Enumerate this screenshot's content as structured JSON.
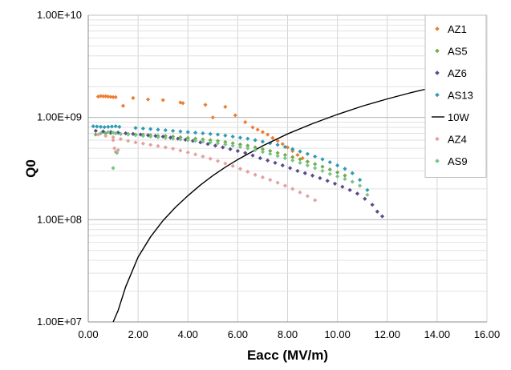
{
  "chart_data": {
    "type": "scatter",
    "title": "",
    "xlabel": "Eacc (MV/m)",
    "ylabel": "Q0",
    "xlim": [
      0,
      16
    ],
    "ylim": [
      10000000,
      10000000000
    ],
    "y_scale": "log",
    "grid": true,
    "legend_placement": "right",
    "x_tick_labels": [
      "0.00",
      "2.00",
      "4.00",
      "6.00",
      "8.00",
      "10.00",
      "12.00",
      "14.00",
      "16.00"
    ],
    "y_tick_labels": [
      "1.00E+07",
      "1.00E+08",
      "1.00E+09",
      "1.00E+10"
    ],
    "series": [
      {
        "name": "AZ1",
        "marker": "diamond",
        "color": "#ED7D31",
        "x": [
          0.4,
          0.5,
          0.6,
          0.7,
          0.8,
          0.9,
          1.0,
          1.1,
          1.4,
          1.8,
          2.4,
          3.0,
          3.7,
          3.8,
          4.7,
          5.0,
          5.5,
          5.9,
          6.3,
          6.6,
          6.8,
          7.0,
          7.2,
          7.4,
          7.6,
          7.8,
          8.0,
          8.2,
          8.4,
          8.6,
          8.8
        ],
        "y": [
          1600000000,
          1620000000,
          1610000000,
          1610000000,
          1600000000,
          1590000000,
          1580000000,
          1580000000,
          1300000000,
          1550000000,
          1500000000,
          1480000000,
          1400000000,
          1380000000,
          1330000000,
          1000000000,
          1270000000,
          1050000000,
          900000000,
          800000000,
          760000000,
          720000000,
          680000000,
          630000000,
          590000000,
          550000000,
          510000000,
          470000000,
          430000000,
          400000000,
          370000000
        ]
      },
      {
        "name": "AS5",
        "marker": "diamond",
        "color": "#70AD47",
        "x": [
          0.3,
          0.5,
          0.7,
          0.9,
          1.1,
          1.3,
          1.6,
          1.9,
          2.2,
          2.5,
          2.8,
          3.1,
          3.4,
          3.7,
          4.0,
          4.3,
          4.6,
          4.9,
          5.2,
          5.5,
          5.8,
          6.1,
          6.4,
          6.7,
          7.0,
          7.3,
          7.6,
          7.9,
          8.2,
          8.5,
          8.8,
          9.1,
          9.4,
          9.7,
          10.0,
          10.3
        ],
        "y": [
          680000000,
          700000000,
          700000000,
          700000000,
          700000000,
          690000000,
          690000000,
          680000000,
          680000000,
          670000000,
          660000000,
          660000000,
          650000000,
          640000000,
          630000000,
          620000000,
          610000000,
          600000000,
          590000000,
          575000000,
          560000000,
          545000000,
          530000000,
          510000000,
          490000000,
          470000000,
          450000000,
          430000000,
          410000000,
          390000000,
          370000000,
          350000000,
          330000000,
          310000000,
          290000000,
          270000000
        ]
      },
      {
        "name": "AZ6",
        "marker": "diamond",
        "color": "#5B4A8B",
        "x": [
          0.3,
          0.6,
          0.9,
          1.2,
          1.5,
          1.8,
          2.1,
          2.4,
          2.7,
          3.0,
          3.3,
          3.6,
          3.9,
          4.2,
          4.5,
          4.8,
          5.1,
          5.4,
          5.7,
          6.0,
          6.3,
          6.6,
          6.9,
          7.2,
          7.5,
          7.8,
          8.1,
          8.4,
          8.7,
          9.0,
          9.3,
          9.6,
          9.9,
          10.2,
          10.5,
          10.8,
          11.1,
          11.4,
          11.6,
          11.8
        ],
        "y": [
          740000000,
          730000000,
          720000000,
          710000000,
          700000000,
          690000000,
          680000000,
          670000000,
          660000000,
          650000000,
          635000000,
          620000000,
          605000000,
          590000000,
          570000000,
          550000000,
          530000000,
          510000000,
          490000000,
          470000000,
          450000000,
          425000000,
          400000000,
          380000000,
          360000000,
          340000000,
          320000000,
          300000000,
          285000000,
          270000000,
          255000000,
          240000000,
          225000000,
          210000000,
          195000000,
          180000000,
          160000000,
          140000000,
          120000000,
          108000000
        ]
      },
      {
        "name": "AS13",
        "marker": "diamond",
        "color": "#2E9CB4",
        "x": [
          0.2,
          0.35,
          0.5,
          0.65,
          0.8,
          0.95,
          1.1,
          1.25,
          1.9,
          2.2,
          2.5,
          2.8,
          3.1,
          3.4,
          3.7,
          4.0,
          4.3,
          4.6,
          4.9,
          5.2,
          5.5,
          5.8,
          6.1,
          6.4,
          6.7,
          7.0,
          7.3,
          7.6,
          7.9,
          8.2,
          8.5,
          8.8,
          9.1,
          9.4,
          9.7,
          10.0,
          10.3,
          10.6,
          10.9,
          11.2
        ],
        "y": [
          820000000,
          815000000,
          810000000,
          805000000,
          810000000,
          815000000,
          820000000,
          810000000,
          790000000,
          780000000,
          770000000,
          760000000,
          750000000,
          740000000,
          730000000,
          720000000,
          710000000,
          700000000,
          690000000,
          680000000,
          665000000,
          650000000,
          635000000,
          620000000,
          600000000,
          580000000,
          560000000,
          540000000,
          515000000,
          490000000,
          465000000,
          440000000,
          415000000,
          390000000,
          365000000,
          340000000,
          315000000,
          285000000,
          245000000,
          195000000
        ]
      },
      {
        "name": "10W",
        "marker": "line",
        "color": "#000000",
        "x": [
          1.0,
          1.2,
          1.5,
          2.0,
          2.5,
          3.0,
          3.5,
          4.0,
          4.5,
          5.0,
          5.5,
          6.0,
          7.0,
          8.0,
          9.0,
          10.0,
          11.0,
          12.0,
          13.0,
          14.0,
          15.0,
          15.6
        ],
        "y": [
          10000000,
          13000000,
          22000000,
          43000000,
          68000000,
          98000000,
          132000000,
          172000000,
          218000000,
          270000000,
          326000000,
          388000000,
          528000000,
          690000000,
          870000000,
          1070000000,
          1290000000,
          1520000000,
          1760000000,
          2010000000,
          2250000000,
          2350000000
        ]
      },
      {
        "name": "AZ4",
        "marker": "diamond",
        "color": "#E6A0A0",
        "x": [
          0.4,
          0.7,
          1.0,
          1.3,
          1.6,
          1.9,
          2.2,
          2.5,
          2.8,
          3.1,
          3.4,
          3.7,
          4.0,
          4.3,
          4.6,
          4.9,
          5.2,
          5.5,
          5.8,
          6.1,
          6.4,
          6.7,
          7.0,
          7.3,
          7.6,
          7.9,
          8.2,
          8.5,
          8.8,
          9.1,
          1.1,
          1.2,
          1.0,
          1.05
        ],
        "y": [
          680000000,
          660000000,
          640000000,
          615000000,
          590000000,
          570000000,
          555000000,
          540000000,
          525000000,
          510000000,
          495000000,
          475000000,
          455000000,
          435000000,
          415000000,
          395000000,
          375000000,
          355000000,
          335000000,
          315000000,
          295000000,
          275000000,
          260000000,
          245000000,
          230000000,
          215000000,
          200000000,
          185000000,
          170000000,
          155000000,
          460000000,
          480000000,
          600000000,
          500000000
        ]
      },
      {
        "name": "AS9",
        "marker": "diamond",
        "color": "#76C48A",
        "x": [
          0.5,
          0.8,
          1.0,
          1.1,
          1.3,
          1.6,
          1.9,
          2.2,
          2.5,
          2.8,
          3.1,
          3.4,
          3.7,
          4.0,
          4.3,
          4.6,
          4.9,
          5.2,
          5.5,
          5.8,
          6.1,
          6.4,
          6.7,
          7.0,
          7.3,
          7.6,
          7.9,
          8.2,
          8.5,
          8.8,
          9.1,
          9.4,
          9.7,
          10.0,
          10.3,
          10.6,
          10.9,
          11.2,
          1.0,
          1.15
        ],
        "y": [
          700000000,
          720000000,
          710000000,
          700000000,
          690000000,
          680000000,
          670000000,
          660000000,
          650000000,
          640000000,
          630000000,
          620000000,
          610000000,
          600000000,
          590000000,
          580000000,
          570000000,
          560000000,
          545000000,
          530000000,
          515000000,
          500000000,
          480000000,
          460000000,
          440000000,
          420000000,
          400000000,
          380000000,
          360000000,
          340000000,
          320000000,
          300000000,
          280000000,
          265000000,
          250000000,
          235000000,
          215000000,
          175000000,
          320000000,
          450000000
        ]
      }
    ]
  }
}
